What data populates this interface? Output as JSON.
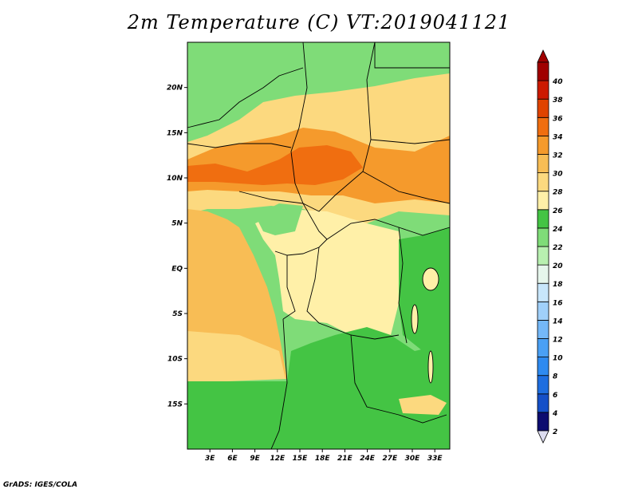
{
  "title": "2m Temperature (C) VT:2019041121",
  "credit": "GrADS: IGES/COLA",
  "map": {
    "lat_ticks": [
      {
        "label": "20N",
        "lat": 20
      },
      {
        "label": "15N",
        "lat": 15
      },
      {
        "label": "10N",
        "lat": 10
      },
      {
        "label": "5N",
        "lat": 5
      },
      {
        "label": "EQ",
        "lat": 0
      },
      {
        "label": "5S",
        "lat": -5
      },
      {
        "label": "10S",
        "lat": -10
      },
      {
        "label": "15S",
        "lat": -15
      }
    ],
    "lon_ticks": [
      {
        "label": "3E",
        "lon": 3
      },
      {
        "label": "6E",
        "lon": 6
      },
      {
        "label": "9E",
        "lon": 9
      },
      {
        "label": "12E",
        "lon": 12
      },
      {
        "label": "15E",
        "lon": 15
      },
      {
        "label": "18E",
        "lon": 18
      },
      {
        "label": "21E",
        "lon": 21
      },
      {
        "label": "24E",
        "lon": 24
      },
      {
        "label": "27E",
        "lon": 27
      },
      {
        "label": "30E",
        "lon": 30
      },
      {
        "label": "33E",
        "lon": 33
      }
    ],
    "lon_range": [
      0,
      35
    ],
    "lat_range": [
      -20,
      25
    ]
  },
  "colorbar": {
    "levels": [
      "2",
      "4",
      "6",
      "8",
      "10",
      "12",
      "14",
      "16",
      "18",
      "20",
      "22",
      "24",
      "26",
      "28",
      "30",
      "32",
      "34",
      "36",
      "38",
      "40"
    ],
    "colors": [
      "#0c0c70",
      "#1550c8",
      "#1e6ee0",
      "#2e8af0",
      "#4aa0f5",
      "#74b8f8",
      "#a0d0fa",
      "#c8e6fb",
      "#e6f6ec",
      "#b8f0b0",
      "#7fdc78",
      "#44c444",
      "#fff0a8",
      "#fcd97f",
      "#f8bd55",
      "#f59a2c",
      "#f06e10",
      "#e04400",
      "#cc1a00",
      "#a00000"
    ],
    "under_color": "#dcdcf0"
  },
  "regions": [
    {
      "name": "sahara-north",
      "color": "#7fdc78"
    },
    {
      "name": "sahel-band",
      "color": "#fcd97f"
    },
    {
      "name": "hot-band",
      "color": "#f59a2c"
    },
    {
      "name": "hot-core",
      "color": "#f06e10"
    },
    {
      "name": "congo-basin",
      "color": "#fff0a8"
    },
    {
      "name": "gulf-ocean",
      "color": "#f8bd55"
    },
    {
      "name": "southern-green",
      "color": "#44c444"
    }
  ]
}
